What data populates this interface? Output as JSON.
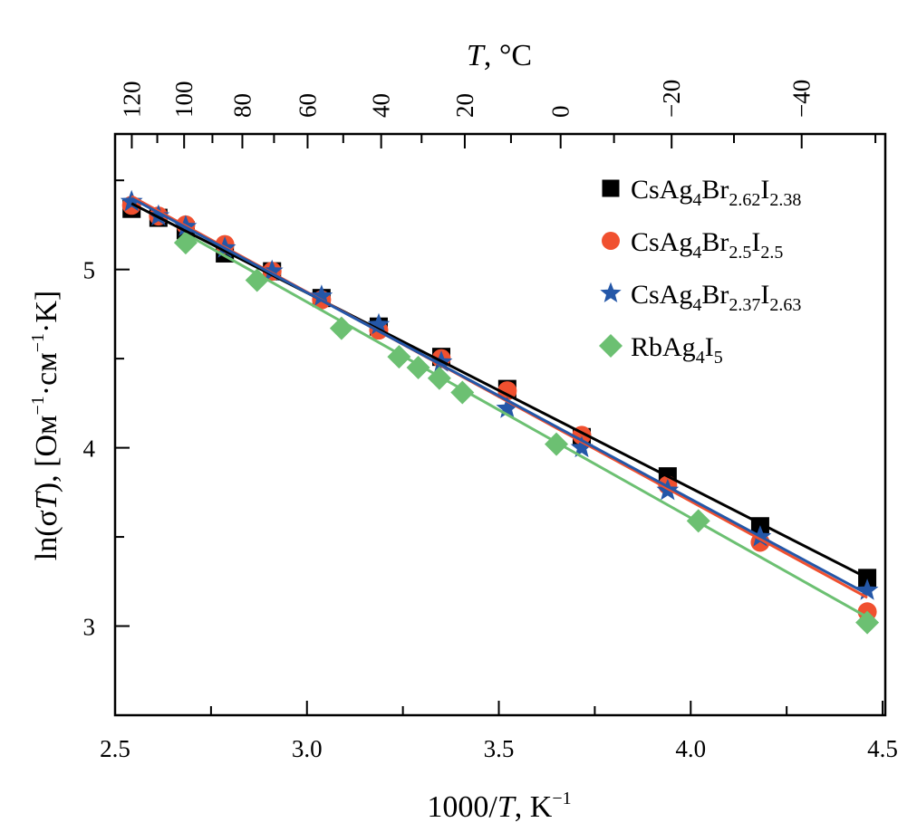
{
  "chart_data": {
    "type": "scatter",
    "title": "",
    "xlabel": "1000/T, K⁻¹",
    "xlabel_parts": [
      "1000/",
      "T",
      ", K",
      "−1"
    ],
    "ylabel": "ln(σT), [Ом⁻¹·см⁻¹·K]",
    "ylabel_parts": [
      "ln(σ",
      "T",
      "), [Ом",
      "−1",
      "·см",
      "−1",
      "·K]"
    ],
    "top_xlabel": "T, °C",
    "top_xlabel_parts": [
      "T",
      ", °C"
    ],
    "xlim": [
      2.5,
      4.507
    ],
    "ylim": [
      2.5,
      5.76
    ],
    "x_ticks": [
      2.5,
      3.0,
      3.5,
      4.0,
      4.5
    ],
    "x_tick_labels": [
      "2.5",
      "3.0",
      "3.5",
      "4.0",
      "4.5"
    ],
    "x_minor_ticks": [
      2.75,
      3.25,
      3.75,
      4.25
    ],
    "y_ticks": [
      3,
      4,
      5
    ],
    "y_tick_labels": [
      "3",
      "4",
      "5"
    ],
    "y_minor_ticks": [
      2.5,
      3.5,
      4.5,
      5.5
    ],
    "top_ticks_celsius": [
      120,
      100,
      80,
      60,
      40,
      20,
      0,
      -20,
      -40
    ],
    "top_tick_labels": [
      "120",
      "100",
      "80",
      "60",
      "40",
      "20",
      "0",
      "−20",
      "−40"
    ],
    "top_minor_ticks_celsius": [
      110,
      90,
      70,
      50,
      30,
      10,
      -10,
      -30,
      -50
    ],
    "grid": false,
    "legend_position": "top-right",
    "series": [
      {
        "name": "CsAg4Br2.62I2.38",
        "label_parts": [
          [
            "CsAg",
            ""
          ],
          [
            "4",
            "sub"
          ],
          [
            "Br",
            ""
          ],
          [
            "2.62",
            "sub"
          ],
          [
            "I",
            ""
          ],
          [
            "2.38",
            "sub"
          ]
        ],
        "marker": "square",
        "color": "#000000",
        "x": [
          2.543,
          2.613,
          2.684,
          2.786,
          2.909,
          3.038,
          3.187,
          3.35,
          3.522,
          3.716,
          3.94,
          4.181,
          4.46
        ],
        "y": [
          5.34,
          5.29,
          5.22,
          5.09,
          4.99,
          4.84,
          4.68,
          4.51,
          4.33,
          4.06,
          3.84,
          3.56,
          3.27
        ],
        "fit": {
          "x": [
            2.543,
            4.46
          ],
          "y": [
            5.37,
            3.27
          ]
        }
      },
      {
        "name": "CsAg4Br2.5I2.5",
        "label_parts": [
          [
            "CsAg",
            ""
          ],
          [
            "4",
            "sub"
          ],
          [
            "Br",
            ""
          ],
          [
            "2.5",
            "sub"
          ],
          [
            "I",
            ""
          ],
          [
            "2.5",
            "sub"
          ]
        ],
        "marker": "circle",
        "color": "#f0502f",
        "x": [
          2.543,
          2.613,
          2.684,
          2.786,
          2.909,
          3.038,
          3.187,
          3.35,
          3.522,
          3.716,
          3.94,
          4.181,
          4.46
        ],
        "y": [
          5.36,
          5.3,
          5.25,
          5.14,
          4.99,
          4.83,
          4.66,
          4.5,
          4.32,
          4.07,
          3.79,
          3.47,
          3.08
        ],
        "fit": {
          "x": [
            2.543,
            4.46
          ],
          "y": [
            5.41,
            3.16
          ]
        }
      },
      {
        "name": "CsAg4Br2.37I2.63",
        "label_parts": [
          [
            "CsAg",
            ""
          ],
          [
            "4",
            "sub"
          ],
          [
            "Br",
            ""
          ],
          [
            "2.37",
            "sub"
          ],
          [
            "I",
            ""
          ],
          [
            "2.63",
            "sub"
          ]
        ],
        "marker": "star",
        "color": "#2457a8",
        "x": [
          2.543,
          2.613,
          2.684,
          2.786,
          2.909,
          3.038,
          3.187,
          3.35,
          3.522,
          3.716,
          3.94,
          4.181,
          4.46
        ],
        "y": [
          5.38,
          5.3,
          5.24,
          5.12,
          4.99,
          4.85,
          4.69,
          4.48,
          4.22,
          4.0,
          3.76,
          3.5,
          3.2
        ],
        "fit": {
          "x": [
            2.543,
            4.46
          ],
          "y": [
            5.4,
            3.18
          ]
        }
      },
      {
        "name": "RbAg4I5",
        "label_parts": [
          [
            "RbAg",
            ""
          ],
          [
            "4",
            "sub"
          ],
          [
            "I",
            ""
          ],
          [
            "5",
            "sub"
          ]
        ],
        "marker": "diamond",
        "color": "#6cc072",
        "x": [
          2.684,
          2.87,
          3.09,
          3.24,
          3.29,
          3.345,
          3.405,
          3.65,
          4.02,
          4.46
        ],
        "y": [
          5.15,
          4.94,
          4.67,
          4.51,
          4.45,
          4.39,
          4.31,
          4.02,
          3.59,
          3.02
        ],
        "fit": {
          "x": [
            2.684,
            4.46
          ],
          "y": [
            5.2,
            3.05
          ]
        }
      }
    ]
  }
}
